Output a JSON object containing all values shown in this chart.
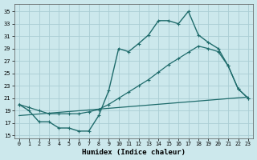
{
  "xlabel": "Humidex (Indice chaleur)",
  "bg_color": "#cce8ec",
  "grid_color": "#aacdd4",
  "line_color": "#1e6b6b",
  "xlim": [
    -0.5,
    23.5
  ],
  "ylim": [
    14.5,
    36.2
  ],
  "xticks": [
    0,
    1,
    2,
    3,
    4,
    5,
    6,
    7,
    8,
    9,
    10,
    11,
    12,
    13,
    14,
    15,
    16,
    17,
    18,
    19,
    20,
    21,
    22,
    23
  ],
  "yticks": [
    15,
    17,
    19,
    21,
    23,
    25,
    27,
    29,
    31,
    33,
    35
  ],
  "line1_x": [
    0,
    1,
    2,
    3,
    4,
    5,
    6,
    7,
    8,
    9,
    10,
    11,
    12,
    13,
    14,
    15,
    16,
    17,
    18,
    19,
    20,
    21,
    22,
    23
  ],
  "line1_y": [
    20,
    19,
    17.2,
    17.2,
    16.2,
    16.2,
    15.7,
    15.7,
    18.2,
    22.2,
    29,
    28.5,
    29.8,
    31.2,
    33.5,
    33.5,
    33,
    35,
    31.2,
    30,
    29,
    26.2,
    22.5,
    21
  ],
  "line2_x": [
    0,
    1,
    2,
    3,
    4,
    5,
    6,
    7,
    8,
    9,
    10,
    11,
    12,
    13,
    14,
    15,
    16,
    17,
    18,
    19,
    20,
    21,
    22,
    23
  ],
  "line2_y": [
    20,
    19.5,
    19,
    18.5,
    18.5,
    18.5,
    18.5,
    18.8,
    19.2,
    20,
    21,
    22,
    23,
    24,
    25.2,
    26.4,
    27.4,
    28.4,
    29.4,
    29,
    28.5,
    26.2,
    22.5,
    21
  ],
  "line3_x": [
    0,
    23
  ],
  "line3_y": [
    18.2,
    21.2
  ]
}
